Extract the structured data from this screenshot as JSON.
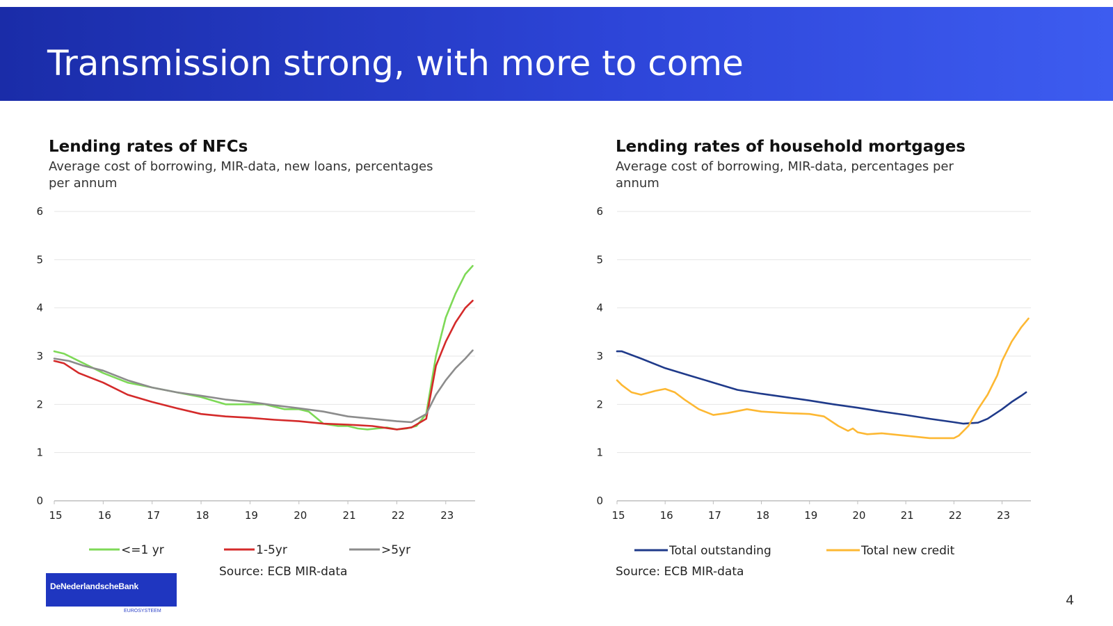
{
  "slide": {
    "title": "Transmission strong, with more to come",
    "page_number": "4",
    "logo_text": "DeNederlandscheBank",
    "logo_subtext": "EUROSYSTEEM",
    "colors": {
      "banner": "#2139c8",
      "logo": "#1f36c0"
    }
  },
  "chart_data": [
    {
      "type": "line",
      "title": "Lending rates of NFCs",
      "subtitle_line1": "Average cost of borrowing, MIR-data, new loans, percentages",
      "subtitle_line2": "per annum",
      "source": "Source: ECB MIR-data",
      "xlabel": "",
      "ylabel": "",
      "x_range": [
        15,
        23.6
      ],
      "ylim": [
        0,
        6
      ],
      "y_ticks": [
        0,
        1,
        2,
        3,
        4,
        5,
        6
      ],
      "x_ticks": [
        15,
        16,
        17,
        18,
        19,
        20,
        21,
        22,
        23
      ],
      "x_tick_labels": [
        "15",
        "16",
        "17",
        "18",
        "19",
        "20",
        "21",
        "22",
        "23"
      ],
      "grid": true,
      "legend_position": "bottom",
      "series": [
        {
          "name": "<=1 yr",
          "color": "#7ed957",
          "x": [
            15,
            15.2,
            15.5,
            15.8,
            16,
            16.5,
            17,
            17.5,
            18,
            18.5,
            19,
            19.3,
            19.7,
            20,
            20.2,
            20.5,
            20.8,
            21,
            21.2,
            21.4,
            21.6,
            21.8,
            22,
            22.2,
            22.4,
            22.6,
            22.8,
            23,
            23.2,
            23.4,
            23.55
          ],
          "values": [
            3.1,
            3.05,
            2.9,
            2.75,
            2.65,
            2.45,
            2.35,
            2.25,
            2.15,
            2.0,
            2.0,
            2.0,
            1.9,
            1.9,
            1.85,
            1.6,
            1.55,
            1.55,
            1.5,
            1.48,
            1.5,
            1.52,
            1.48,
            1.5,
            1.55,
            1.8,
            3.0,
            3.8,
            4.3,
            4.7,
            4.87
          ]
        },
        {
          "name": "1-5yr",
          "color": "#d42a2a",
          "x": [
            15,
            15.2,
            15.5,
            16,
            16.5,
            17,
            17.5,
            18,
            18.5,
            19,
            19.5,
            20,
            20.5,
            21,
            21.5,
            22,
            22.3,
            22.6,
            22.8,
            23,
            23.2,
            23.4,
            23.55
          ],
          "values": [
            2.9,
            2.85,
            2.65,
            2.45,
            2.2,
            2.05,
            1.92,
            1.8,
            1.75,
            1.72,
            1.68,
            1.65,
            1.6,
            1.58,
            1.55,
            1.48,
            1.52,
            1.7,
            2.8,
            3.3,
            3.7,
            4.0,
            4.15
          ]
        },
        {
          "name": ">5yr",
          "color": "#8c8c8c",
          "x": [
            15,
            15.3,
            15.6,
            16,
            16.5,
            17,
            17.5,
            18,
            18.5,
            19,
            19.5,
            20,
            20.5,
            21,
            21.5,
            22,
            22.3,
            22.6,
            22.8,
            23,
            23.2,
            23.4,
            23.55
          ],
          "values": [
            2.95,
            2.9,
            2.8,
            2.7,
            2.5,
            2.35,
            2.25,
            2.18,
            2.1,
            2.05,
            1.98,
            1.92,
            1.85,
            1.75,
            1.7,
            1.65,
            1.63,
            1.8,
            2.2,
            2.5,
            2.75,
            2.95,
            3.12
          ]
        }
      ]
    },
    {
      "type": "line",
      "title": "Lending rates of household mortgages",
      "subtitle_line1": "Average cost of borrowing, MIR-data, percentages per",
      "subtitle_line2": "annum",
      "source": "Source: ECB MIR-data",
      "xlabel": "",
      "ylabel": "",
      "x_range": [
        15,
        23.6
      ],
      "ylim": [
        0,
        6
      ],
      "y_ticks": [
        0,
        1,
        2,
        3,
        4,
        5,
        6
      ],
      "x_ticks": [
        15,
        16,
        17,
        18,
        19,
        20,
        21,
        22,
        23
      ],
      "x_tick_labels": [
        "15",
        "16",
        "17",
        "18",
        "19",
        "20",
        "21",
        "22",
        "23"
      ],
      "grid": true,
      "legend_position": "bottom",
      "series": [
        {
          "name": "Total outstanding",
          "color": "#1f3a8a",
          "x": [
            15,
            15.1,
            15.5,
            16,
            16.5,
            17,
            17.5,
            18,
            18.5,
            19,
            19.5,
            20,
            20.5,
            21,
            21.5,
            22,
            22.2,
            22.5,
            22.7,
            23,
            23.2,
            23.4,
            23.5
          ],
          "values": [
            3.1,
            3.1,
            2.95,
            2.75,
            2.6,
            2.45,
            2.3,
            2.22,
            2.15,
            2.08,
            2.0,
            1.93,
            1.85,
            1.78,
            1.7,
            1.63,
            1.6,
            1.62,
            1.7,
            1.9,
            2.05,
            2.18,
            2.25
          ]
        },
        {
          "name": "Total new credit",
          "color": "#fdb833",
          "x": [
            15,
            15.1,
            15.3,
            15.5,
            15.8,
            16,
            16.2,
            16.4,
            16.7,
            17,
            17.3,
            17.7,
            18,
            18.5,
            19,
            19.3,
            19.6,
            19.8,
            19.9,
            20,
            20.2,
            20.5,
            21,
            21.5,
            22,
            22.1,
            22.3,
            22.5,
            22.7,
            22.9,
            23,
            23.2,
            23.4,
            23.55
          ],
          "values": [
            2.5,
            2.4,
            2.25,
            2.2,
            2.28,
            2.32,
            2.25,
            2.1,
            1.9,
            1.78,
            1.82,
            1.9,
            1.85,
            1.82,
            1.8,
            1.75,
            1.55,
            1.45,
            1.5,
            1.42,
            1.38,
            1.4,
            1.35,
            1.3,
            1.3,
            1.35,
            1.55,
            1.9,
            2.2,
            2.6,
            2.9,
            3.3,
            3.6,
            3.78
          ]
        }
      ]
    }
  ]
}
